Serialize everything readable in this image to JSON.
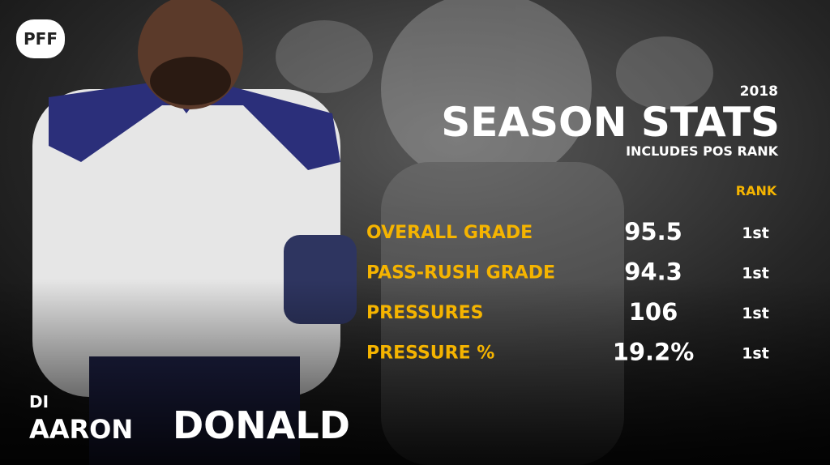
{
  "logo": "PFF",
  "header": {
    "year": "2018",
    "title": "SEASON STATS",
    "subtitle": "INCLUDES POS RANK",
    "rank_header": "RANK"
  },
  "table": {
    "rows": [
      {
        "label": "OVERALL GRADE",
        "value": "95.5",
        "rank": "1st"
      },
      {
        "label": "PASS-RUSH GRADE",
        "value": "94.3",
        "rank": "1st"
      },
      {
        "label": "PRESSURES",
        "value": "106",
        "rank": "1st"
      },
      {
        "label": "PRESSURE %",
        "value": "19.2%",
        "rank": "1st"
      }
    ]
  },
  "player": {
    "position": "DI",
    "first_name": "AARON",
    "last_name": "DONALD"
  }
}
